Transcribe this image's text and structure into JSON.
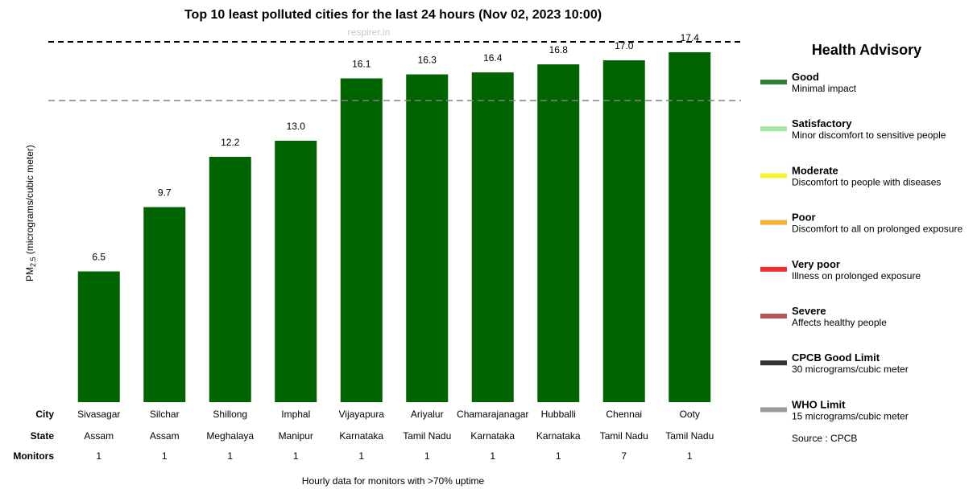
{
  "chart_data": {
    "type": "bar",
    "title": "Top 10 least polluted cities for the last 24 hours (Nov 02, 2023 10:00)",
    "subtitle": "respirer.in",
    "ylabel_prefix": "PM",
    "ylabel_sub": "2.5",
    "ylabel_suffix": " (micrograms/cubic meter)",
    "categories": [
      "Sivasagar",
      "Silchar",
      "Shillong",
      "Imphal",
      "Vijayapura",
      "Ariyalur",
      "Chamarajanagar",
      "Hubballi",
      "Chennai",
      "Ooty"
    ],
    "values": [
      6.5,
      9.7,
      12.2,
      13.0,
      16.1,
      16.3,
      16.4,
      16.8,
      17.0,
      17.4
    ],
    "value_labels": [
      "6.5",
      "9.7",
      "12.2",
      "13.0",
      "16.1",
      "16.3",
      "16.4",
      "16.8",
      "17.0",
      "17.4"
    ],
    "bar_color": "#006400",
    "who_limit": 15,
    "who_line_color": "#808080",
    "ylim": [
      0,
      20
    ],
    "grid": false,
    "table": {
      "row_labels": [
        "City",
        "State",
        "Monitors"
      ],
      "states": [
        "Assam",
        "Assam",
        "Meghalaya",
        "Manipur",
        "Karnataka",
        "Tamil Nadu",
        "Karnataka",
        "Karnataka",
        "Tamil Nadu",
        "Tamil Nadu"
      ],
      "monitors": [
        "1",
        "1",
        "1",
        "1",
        "1",
        "1",
        "1",
        "1",
        "7",
        "1"
      ]
    },
    "footnote": "Hourly data for monitors with >70% uptime"
  },
  "legend": {
    "title": "Health Advisory",
    "items": [
      {
        "name": "Good",
        "desc": "Minimal impact",
        "color": "#2e7d32"
      },
      {
        "name": "Satisfactory",
        "desc": "Minor discomfort to sensitive people",
        "color": "#a5e8a0"
      },
      {
        "name": "Moderate",
        "desc": "Discomfort to people with diseases",
        "color": "#f5f532"
      },
      {
        "name": "Poor",
        "desc": "Discomfort to all on prolonged exposure",
        "color": "#f5b13b"
      },
      {
        "name": "Very poor",
        "desc": "Illness on prolonged exposure",
        "color": "#ee3030"
      },
      {
        "name": "Severe",
        "desc": "Affects healthy people",
        "color": "#b45555"
      },
      {
        "name": "CPCB Good Limit",
        "desc": "30 micrograms/cubic meter",
        "color": "#333333"
      },
      {
        "name": "WHO Limit",
        "desc": "15 micrograms/cubic meter",
        "color": "#9a9a9a"
      }
    ],
    "source": "Source : CPCB"
  }
}
